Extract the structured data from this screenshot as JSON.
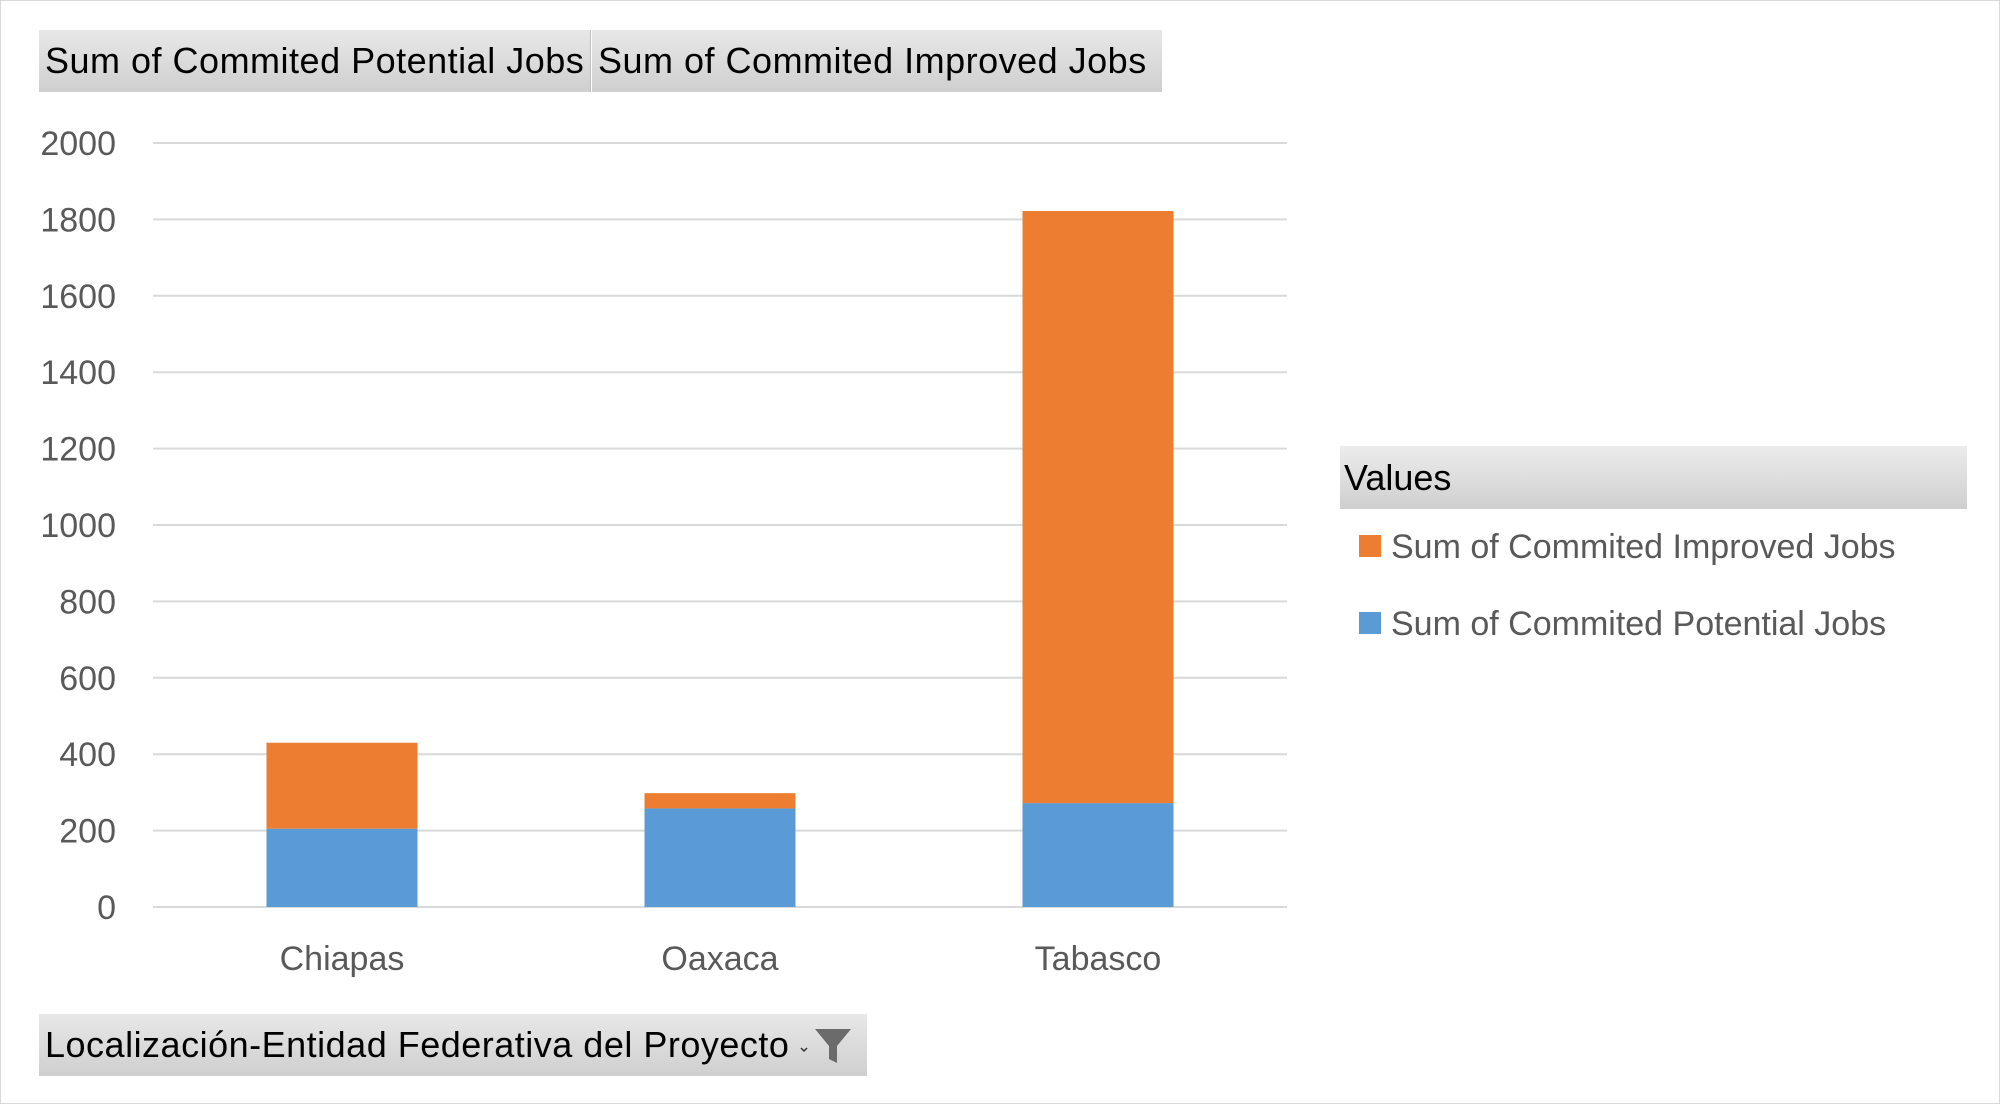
{
  "field_buttons": {
    "potential": "Sum of Commited  Potential  Jobs",
    "improved": "Sum of Commited  Improved  Jobs",
    "axis_field": "Localización-Entidad  Federativa  del  Proyecto"
  },
  "legend": {
    "title": "Values",
    "items": [
      {
        "label": "Sum of Commited Improved Jobs",
        "color": "#ED7D31"
      },
      {
        "label": "Sum of Commited Potential Jobs",
        "color": "#5B9BD5"
      }
    ]
  },
  "icons": {
    "filter": "filter-funnel-icon",
    "dropdown": "dropdown-arrow-icon"
  },
  "chart_data": {
    "type": "bar",
    "stacked": true,
    "categories": [
      "Chiapas",
      "Oaxaca",
      "Tabasco"
    ],
    "series": [
      {
        "name": "Sum of Commited Potential Jobs",
        "values": [
          205,
          258,
          272
        ],
        "color": "#5B9BD5"
      },
      {
        "name": "Sum of Commited Improved Jobs",
        "values": [
          225,
          40,
          1550
        ],
        "color": "#ED7D31"
      }
    ],
    "ylim": [
      0,
      2000
    ],
    "yticks": [
      0,
      200,
      400,
      600,
      800,
      1000,
      1200,
      1400,
      1600,
      1800,
      2000
    ],
    "grid": true,
    "gridline_color": "#d9d9d9",
    "legend_position": "right"
  }
}
